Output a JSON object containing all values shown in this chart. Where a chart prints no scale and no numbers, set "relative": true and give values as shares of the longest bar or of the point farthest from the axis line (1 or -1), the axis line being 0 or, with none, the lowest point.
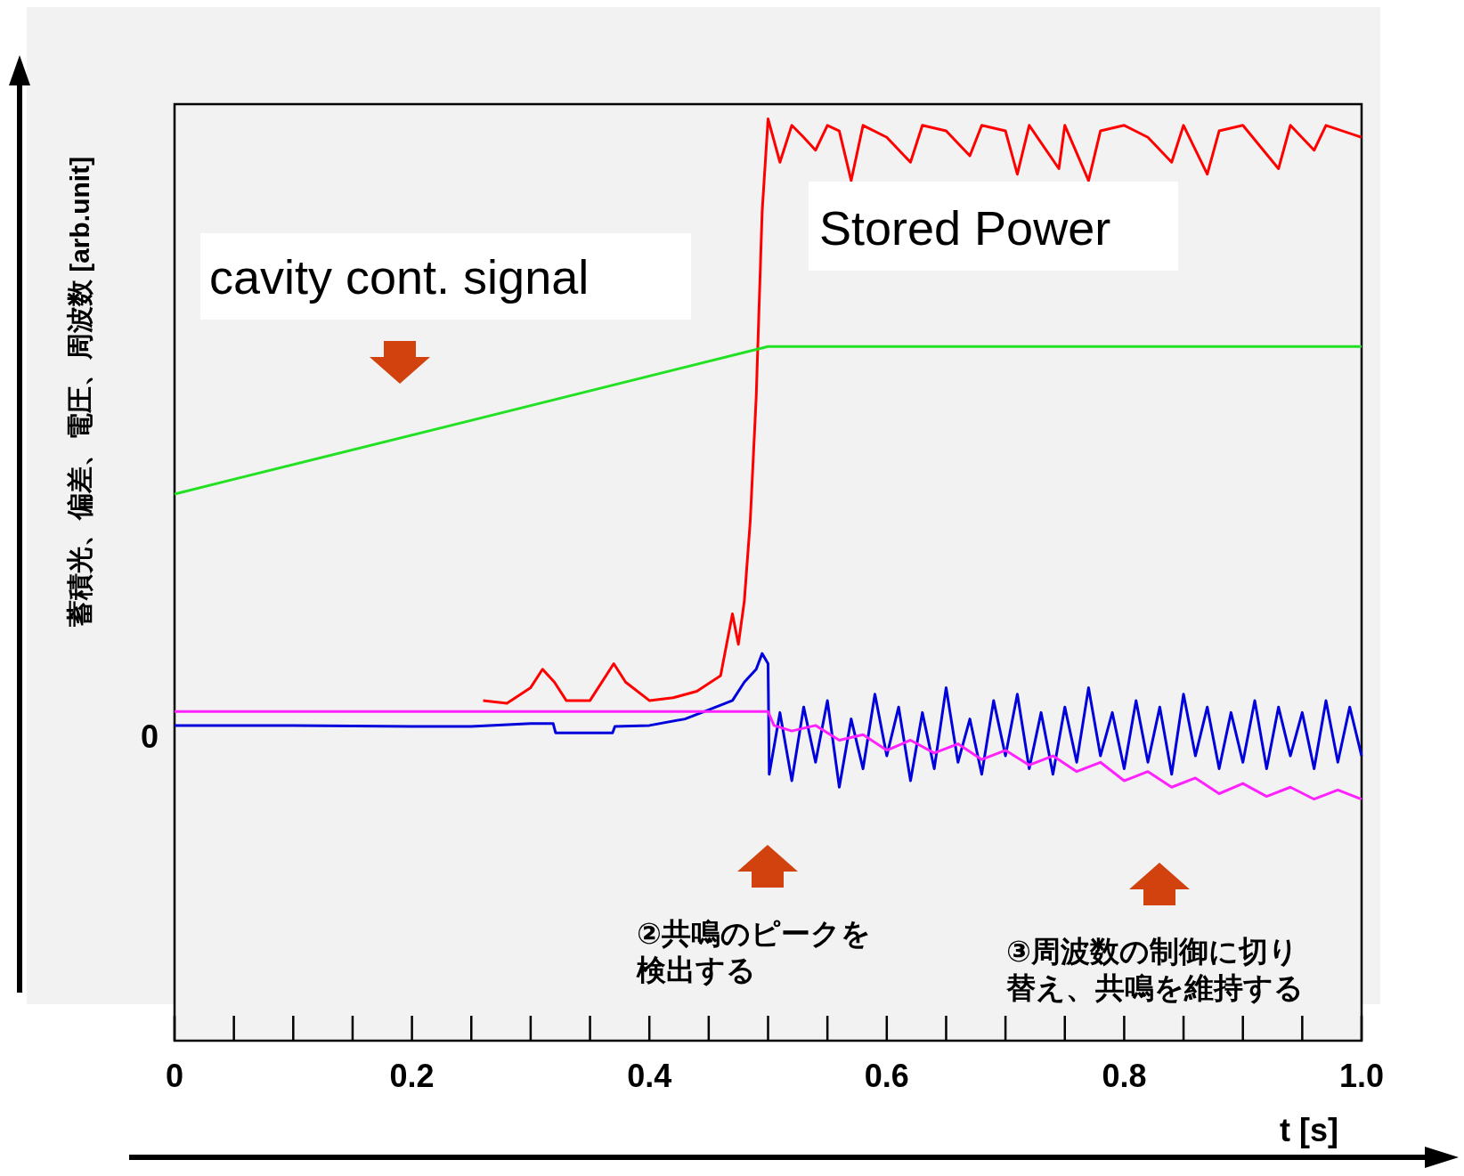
{
  "chart_data": {
    "type": "line",
    "relative": true,
    "xlabel": "t [s]",
    "ylabel": "蓄積光、偏差、電圧、周波数 [arb.unit]",
    "xlim": [
      0,
      1
    ],
    "xticks": [
      0,
      0.2,
      0.4,
      0.6,
      0.8,
      {
        "value": 1,
        "label": "1.0"
      }
    ],
    "grid": false,
    "series": [
      {
        "color": "#ff0000",
        "x": [
          0.26,
          0.28,
          0.3,
          0.31,
          0.32,
          0.33,
          0.35,
          0.37,
          0.38,
          0.4,
          0.42,
          0.44,
          0.46,
          0.47,
          0.475,
          0.48,
          0.485,
          0.49,
          0.495,
          0.5,
          0.51,
          0.52,
          0.53,
          0.54,
          0.55,
          0.56,
          0.57,
          0.58,
          0.6,
          0.62,
          0.63,
          0.65,
          0.67,
          0.68,
          0.7,
          0.71,
          0.72,
          0.745,
          0.75,
          0.77,
          0.78,
          0.8,
          0.82,
          0.84,
          0.85,
          0.87,
          0.88,
          0.9,
          0.93,
          0.94,
          0.96,
          0.97,
          1.0
        ],
        "values": [
          0.369,
          0.366,
          0.383,
          0.403,
          0.389,
          0.369,
          0.369,
          0.409,
          0.389,
          0.369,
          0.372,
          0.379,
          0.396,
          0.463,
          0.43,
          0.477,
          0.564,
          0.698,
          0.899,
          1,
          0.953,
          0.993,
          0.98,
          0.966,
          0.993,
          0.987,
          0.933,
          0.993,
          0.98,
          0.953,
          0.993,
          0.987,
          0.96,
          0.993,
          0.987,
          0.94,
          0.993,
          0.946,
          0.993,
          0.933,
          0.987,
          0.993,
          0.98,
          0.953,
          0.993,
          0.94,
          0.987,
          0.993,
          0.946,
          0.993,
          0.966,
          0.993,
          0.98
        ]
      },
      {
        "color": "#22e022",
        "x": [
          0,
          0.5,
          1.0
        ],
        "values": [
          0.593,
          0.753,
          0.753
        ]
      },
      {
        "color": "#0000dd",
        "x": [
          0,
          0.1,
          0.2,
          0.25,
          0.3,
          0.319,
          0.321,
          0.35,
          0.369,
          0.371,
          0.4,
          0.43,
          0.45,
          0.47,
          0.48,
          0.49,
          0.495,
          0.5,
          0.501,
          0.51,
          0.52,
          0.53,
          0.54,
          0.55,
          0.56,
          0.57,
          0.58,
          0.59,
          0.6,
          0.61,
          0.62,
          0.63,
          0.64,
          0.65,
          0.66,
          0.67,
          0.68,
          0.69,
          0.7,
          0.71,
          0.72,
          0.73,
          0.74,
          0.75,
          0.76,
          0.77,
          0.78,
          0.79,
          0.8,
          0.81,
          0.82,
          0.83,
          0.84,
          0.85,
          0.86,
          0.87,
          0.88,
          0.89,
          0.9,
          0.91,
          0.92,
          0.93,
          0.94,
          0.95,
          0.96,
          0.97,
          0.98,
          0.99,
          1.0
        ],
        "values": [
          0.342,
          0.342,
          0.341,
          0.341,
          0.344,
          0.344,
          0.334,
          0.334,
          0.334,
          0.341,
          0.342,
          0.349,
          0.359,
          0.369,
          0.389,
          0.403,
          0.42,
          0.409,
          0.289,
          0.356,
          0.282,
          0.362,
          0.302,
          0.369,
          0.275,
          0.349,
          0.295,
          0.376,
          0.309,
          0.362,
          0.282,
          0.356,
          0.295,
          0.383,
          0.302,
          0.349,
          0.289,
          0.369,
          0.309,
          0.376,
          0.295,
          0.356,
          0.289,
          0.362,
          0.302,
          0.383,
          0.309,
          0.356,
          0.295,
          0.369,
          0.302,
          0.362,
          0.289,
          0.376,
          0.309,
          0.362,
          0.295,
          0.356,
          0.302,
          0.369,
          0.295,
          0.362,
          0.309,
          0.356,
          0.295,
          0.369,
          0.302,
          0.362,
          0.309
        ]
      },
      {
        "color": "#ff22ff",
        "x": [
          0,
          0.5,
          0.505,
          0.52,
          0.54,
          0.56,
          0.58,
          0.6,
          0.62,
          0.64,
          0.66,
          0.68,
          0.7,
          0.72,
          0.74,
          0.76,
          0.78,
          0.8,
          0.82,
          0.84,
          0.86,
          0.88,
          0.9,
          0.92,
          0.94,
          0.96,
          0.98,
          1.0
        ],
        "values": [
          0.357,
          0.357,
          0.342,
          0.336,
          0.342,
          0.326,
          0.332,
          0.315,
          0.326,
          0.312,
          0.322,
          0.305,
          0.315,
          0.299,
          0.309,
          0.292,
          0.302,
          0.282,
          0.292,
          0.275,
          0.285,
          0.268,
          0.279,
          0.265,
          0.275,
          0.262,
          0.272,
          0.262
        ]
      }
    ],
    "annotations": [
      "0",
      "cavity cont. signal",
      "Stored Power",
      "②共鳴のピークを検出する",
      "③周波数の制御に切り替え、共鳴を維持する"
    ]
  }
}
